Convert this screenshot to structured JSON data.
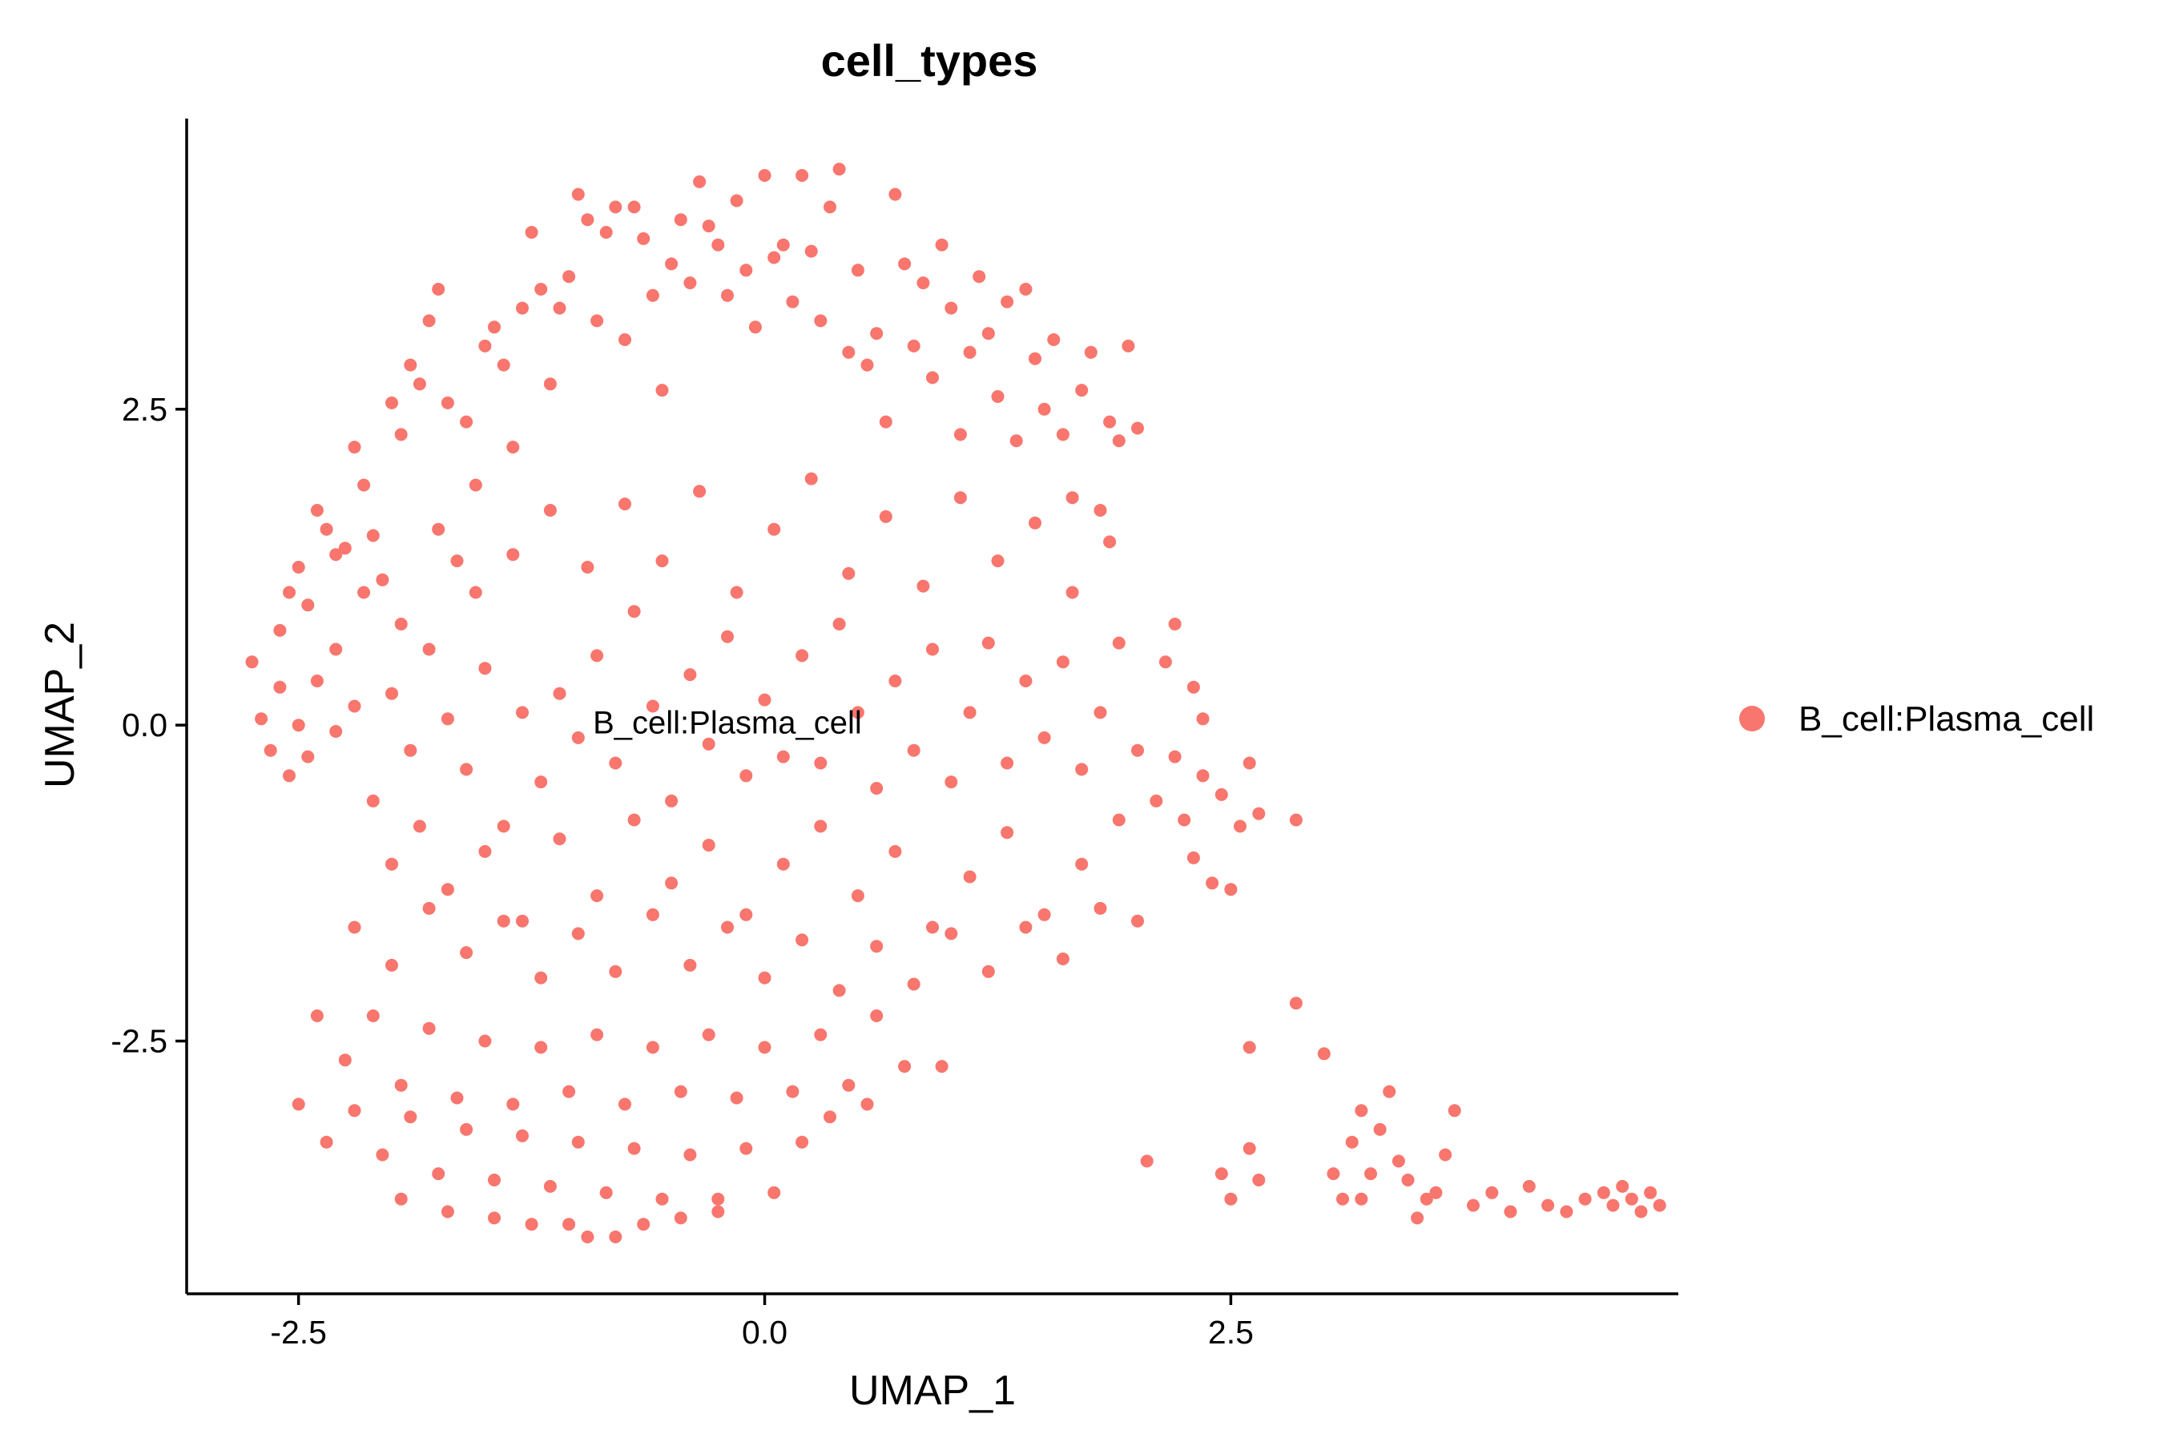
{
  "chart_data": {
    "type": "scatter",
    "title": "cell_types",
    "xlabel": "UMAP_1",
    "ylabel": "UMAP_2",
    "xlim": [
      -3.1,
      4.9
    ],
    "ylim": [
      -4.5,
      4.8
    ],
    "xticks": [
      -2.5,
      0.0,
      2.5
    ],
    "yticks": [
      -2.5,
      0.0,
      2.5
    ],
    "xtick_labels": [
      "-2.5",
      "0.0",
      "2.5"
    ],
    "ytick_labels": [
      "-2.5",
      "0.0",
      "2.5"
    ],
    "grid": false,
    "legend_position": "right",
    "cluster_label": {
      "text": "B_cell:Plasma_cell",
      "x": -0.2,
      "y": 0.0
    },
    "series": [
      {
        "name": "B_cell:Plasma_cell",
        "color": "#F8766D",
        "points": [
          [
            -2.75,
            0.5
          ],
          [
            -2.6,
            0.75
          ],
          [
            -2.55,
            1.05
          ],
          [
            -2.5,
            1.25
          ],
          [
            -2.45,
            0.95
          ],
          [
            -2.4,
            1.7
          ],
          [
            -2.35,
            1.55
          ],
          [
            -2.3,
            0.6
          ],
          [
            -2.25,
            1.4
          ],
          [
            -2.2,
            2.2
          ],
          [
            -2.15,
            1.9
          ],
          [
            -2.1,
            1.5
          ],
          [
            -2.05,
            1.15
          ],
          [
            -2.0,
            2.55
          ],
          [
            -1.95,
            2.3
          ],
          [
            -1.9,
            2.85
          ],
          [
            -1.85,
            2.7
          ],
          [
            -1.8,
            3.2
          ],
          [
            -1.75,
            3.45
          ],
          [
            -1.7,
            2.55
          ],
          [
            -1.65,
            1.3
          ],
          [
            -1.6,
            2.4
          ],
          [
            -1.55,
            1.9
          ],
          [
            -1.5,
            3.0
          ],
          [
            -1.45,
            3.15
          ],
          [
            -1.4,
            2.85
          ],
          [
            -1.35,
            2.2
          ],
          [
            -1.3,
            3.3
          ],
          [
            -1.25,
            3.9
          ],
          [
            -1.2,
            3.45
          ],
          [
            -1.15,
            2.7
          ],
          [
            -1.1,
            3.3
          ],
          [
            -1.05,
            3.55
          ],
          [
            -1.0,
            4.2
          ],
          [
            -0.95,
            4.0
          ],
          [
            -0.9,
            3.2
          ],
          [
            -0.85,
            3.9
          ],
          [
            -0.8,
            4.1
          ],
          [
            -0.75,
            3.05
          ],
          [
            -0.7,
            4.1
          ],
          [
            -0.65,
            3.85
          ],
          [
            -0.6,
            3.4
          ],
          [
            -0.55,
            2.65
          ],
          [
            -0.5,
            3.65
          ],
          [
            -0.45,
            4.0
          ],
          [
            -0.4,
            3.5
          ],
          [
            -0.35,
            4.3
          ],
          [
            -0.3,
            3.95
          ],
          [
            -0.25,
            3.8
          ],
          [
            -0.2,
            3.4
          ],
          [
            -0.15,
            4.15
          ],
          [
            -0.1,
            3.6
          ],
          [
            -0.05,
            3.15
          ],
          [
            0.0,
            4.35
          ],
          [
            0.05,
            3.7
          ],
          [
            0.1,
            3.8
          ],
          [
            0.15,
            3.35
          ],
          [
            0.2,
            4.35
          ],
          [
            0.25,
            3.75
          ],
          [
            0.3,
            3.2
          ],
          [
            0.35,
            4.1
          ],
          [
            0.4,
            4.4
          ],
          [
            0.45,
            2.95
          ],
          [
            0.5,
            3.6
          ],
          [
            0.55,
            2.85
          ],
          [
            0.6,
            3.1
          ],
          [
            0.65,
            2.4
          ],
          [
            0.7,
            4.2
          ],
          [
            0.75,
            3.65
          ],
          [
            0.8,
            3.0
          ],
          [
            0.85,
            3.5
          ],
          [
            0.9,
            2.75
          ],
          [
            0.95,
            3.8
          ],
          [
            1.0,
            3.3
          ],
          [
            1.05,
            2.3
          ],
          [
            1.1,
            2.95
          ],
          [
            1.15,
            3.55
          ],
          [
            1.2,
            3.1
          ],
          [
            1.25,
            2.6
          ],
          [
            1.3,
            3.35
          ],
          [
            1.35,
            2.25
          ],
          [
            1.4,
            3.45
          ],
          [
            1.45,
            2.9
          ],
          [
            1.5,
            2.5
          ],
          [
            1.55,
            3.05
          ],
          [
            1.6,
            2.3
          ],
          [
            1.65,
            1.8
          ],
          [
            1.7,
            2.65
          ],
          [
            1.75,
            2.95
          ],
          [
            1.8,
            1.7
          ],
          [
            1.85,
            2.4
          ],
          [
            1.9,
            2.25
          ],
          [
            1.95,
            3.0
          ],
          [
            2.0,
            2.35
          ],
          [
            -2.7,
            0.05
          ],
          [
            -2.65,
            -0.2
          ],
          [
            -2.6,
            0.3
          ],
          [
            -2.55,
            -0.4
          ],
          [
            -2.5,
            0.0
          ],
          [
            -2.45,
            -0.25
          ],
          [
            -2.4,
            0.35
          ],
          [
            -2.3,
            -0.05
          ],
          [
            -2.2,
            0.15
          ],
          [
            -2.1,
            -0.6
          ],
          [
            -2.0,
            0.25
          ],
          [
            -1.9,
            -0.2
          ],
          [
            -1.8,
            0.6
          ],
          [
            -1.7,
            0.05
          ],
          [
            -1.6,
            -0.35
          ],
          [
            -1.5,
            0.45
          ],
          [
            -1.4,
            -0.8
          ],
          [
            -1.3,
            0.1
          ],
          [
            -1.2,
            -0.45
          ],
          [
            -1.1,
            0.25
          ],
          [
            -1.0,
            -0.1
          ],
          [
            -0.9,
            0.55
          ],
          [
            -0.8,
            -0.3
          ],
          [
            -0.7,
            0.9
          ],
          [
            -0.6,
            0.15
          ],
          [
            -0.5,
            -0.6
          ],
          [
            -0.4,
            0.4
          ],
          [
            -0.3,
            -0.15
          ],
          [
            -0.2,
            0.7
          ],
          [
            -0.1,
            -0.4
          ],
          [
            0.0,
            0.2
          ],
          [
            0.1,
            -0.25
          ],
          [
            0.2,
            0.55
          ],
          [
            0.3,
            -0.3
          ],
          [
            0.4,
            0.8
          ],
          [
            0.5,
            0.1
          ],
          [
            0.6,
            -0.5
          ],
          [
            0.7,
            0.35
          ],
          [
            0.8,
            -0.2
          ],
          [
            0.9,
            0.6
          ],
          [
            1.0,
            -0.45
          ],
          [
            1.1,
            0.1
          ],
          [
            1.2,
            0.65
          ],
          [
            1.3,
            -0.3
          ],
          [
            1.4,
            0.35
          ],
          [
            1.5,
            -0.1
          ],
          [
            1.6,
            0.5
          ],
          [
            1.7,
            -0.35
          ],
          [
            1.8,
            0.1
          ],
          [
            1.9,
            0.65
          ],
          [
            2.0,
            -0.2
          ],
          [
            -2.3,
            1.35
          ],
          [
            -2.15,
            1.05
          ],
          [
            -1.95,
            0.8
          ],
          [
            -1.75,
            1.55
          ],
          [
            -1.55,
            1.05
          ],
          [
            -1.35,
            1.35
          ],
          [
            -1.15,
            1.7
          ],
          [
            -0.95,
            1.25
          ],
          [
            -0.75,
            1.75
          ],
          [
            -0.55,
            1.3
          ],
          [
            -0.35,
            1.85
          ],
          [
            -0.15,
            1.05
          ],
          [
            0.05,
            1.55
          ],
          [
            0.25,
            1.95
          ],
          [
            0.45,
            1.2
          ],
          [
            0.65,
            1.65
          ],
          [
            0.85,
            1.1
          ],
          [
            1.05,
            1.8
          ],
          [
            1.25,
            1.3
          ],
          [
            1.45,
            1.6
          ],
          [
            1.65,
            1.05
          ],
          [
            1.85,
            1.45
          ],
          [
            -2.0,
            -1.1
          ],
          [
            -1.85,
            -0.8
          ],
          [
            -1.7,
            -1.3
          ],
          [
            -1.5,
            -1.0
          ],
          [
            -1.3,
            -1.55
          ],
          [
            -1.1,
            -0.9
          ],
          [
            -0.9,
            -1.35
          ],
          [
            -0.7,
            -0.75
          ],
          [
            -0.5,
            -1.25
          ],
          [
            -0.3,
            -0.95
          ],
          [
            -0.1,
            -1.5
          ],
          [
            0.1,
            -1.1
          ],
          [
            0.3,
            -0.8
          ],
          [
            0.5,
            -1.35
          ],
          [
            0.7,
            -1.0
          ],
          [
            0.9,
            -1.6
          ],
          [
            1.1,
            -1.2
          ],
          [
            1.3,
            -0.85
          ],
          [
            1.5,
            -1.5
          ],
          [
            1.7,
            -1.1
          ],
          [
            1.9,
            -0.75
          ],
          [
            -2.2,
            -1.6
          ],
          [
            -2.0,
            -1.9
          ],
          [
            -1.8,
            -1.45
          ],
          [
            -1.6,
            -1.8
          ],
          [
            -1.4,
            -1.55
          ],
          [
            -1.2,
            -2.0
          ],
          [
            -1.0,
            -1.65
          ],
          [
            -0.8,
            -1.95
          ],
          [
            -0.6,
            -1.5
          ],
          [
            -0.4,
            -1.9
          ],
          [
            -0.2,
            -1.6
          ],
          [
            0.0,
            -2.0
          ],
          [
            0.2,
            -1.7
          ],
          [
            0.4,
            -2.1
          ],
          [
            0.6,
            -1.75
          ],
          [
            0.8,
            -2.05
          ],
          [
            1.0,
            -1.65
          ],
          [
            1.2,
            -1.95
          ],
          [
            1.4,
            -1.6
          ],
          [
            1.6,
            -1.85
          ],
          [
            1.8,
            -1.45
          ],
          [
            -2.4,
            -2.3
          ],
          [
            -2.25,
            -2.65
          ],
          [
            -2.1,
            -2.3
          ],
          [
            -1.95,
            -2.85
          ],
          [
            -1.8,
            -2.4
          ],
          [
            -1.65,
            -2.95
          ],
          [
            -1.5,
            -2.5
          ],
          [
            -1.35,
            -3.0
          ],
          [
            -1.2,
            -2.55
          ],
          [
            -1.05,
            -2.9
          ],
          [
            -0.9,
            -2.45
          ],
          [
            -0.75,
            -3.0
          ],
          [
            -0.6,
            -2.55
          ],
          [
            -0.45,
            -2.9
          ],
          [
            -0.3,
            -2.45
          ],
          [
            -0.15,
            -2.95
          ],
          [
            0.0,
            -2.55
          ],
          [
            0.15,
            -2.9
          ],
          [
            0.3,
            -2.45
          ],
          [
            0.45,
            -2.85
          ],
          [
            0.6,
            -2.3
          ],
          [
            0.75,
            -2.7
          ],
          [
            0.95,
            -2.7
          ],
          [
            -2.5,
            -3.0
          ],
          [
            -2.35,
            -3.3
          ],
          [
            -2.2,
            -3.05
          ],
          [
            -2.05,
            -3.4
          ],
          [
            -1.9,
            -3.1
          ],
          [
            -1.75,
            -3.55
          ],
          [
            -1.6,
            -3.2
          ],
          [
            -1.45,
            -3.6
          ],
          [
            -1.3,
            -3.25
          ],
          [
            -1.15,
            -3.65
          ],
          [
            -1.0,
            -3.3
          ],
          [
            -0.85,
            -3.7
          ],
          [
            -0.7,
            -3.35
          ],
          [
            -0.55,
            -3.75
          ],
          [
            -0.4,
            -3.4
          ],
          [
            -0.25,
            -3.75
          ],
          [
            -0.1,
            -3.35
          ],
          [
            0.05,
            -3.7
          ],
          [
            0.2,
            -3.3
          ],
          [
            0.35,
            -3.1
          ],
          [
            0.55,
            -3.0
          ],
          [
            -1.95,
            -3.75
          ],
          [
            -1.7,
            -3.85
          ],
          [
            -1.45,
            -3.9
          ],
          [
            -1.25,
            -3.95
          ],
          [
            -1.05,
            -3.95
          ],
          [
            -0.95,
            -4.05
          ],
          [
            -0.8,
            -4.05
          ],
          [
            -0.65,
            -3.95
          ],
          [
            -0.45,
            -3.9
          ],
          [
            -0.25,
            -3.85
          ],
          [
            2.1,
            -0.6
          ],
          [
            2.2,
            -0.25
          ],
          [
            2.25,
            -0.75
          ],
          [
            2.3,
            -1.05
          ],
          [
            2.35,
            -0.4
          ],
          [
            2.4,
            -1.25
          ],
          [
            2.45,
            -0.55
          ],
          [
            2.5,
            -1.3
          ],
          [
            2.55,
            -0.8
          ],
          [
            2.6,
            -0.3
          ],
          [
            2.65,
            -0.7
          ],
          [
            2.15,
            0.5
          ],
          [
            2.2,
            0.8
          ],
          [
            2.3,
            0.3
          ],
          [
            2.35,
            0.05
          ],
          [
            2.0,
            -1.55
          ],
          [
            2.85,
            -0.75
          ],
          [
            2.85,
            -2.2
          ],
          [
            2.6,
            -2.55
          ],
          [
            2.05,
            -3.45
          ],
          [
            2.45,
            -3.55
          ],
          [
            2.6,
            -3.35
          ],
          [
            2.65,
            -3.6
          ],
          [
            2.5,
            -3.75
          ],
          [
            3.0,
            -2.6
          ],
          [
            3.05,
            -3.55
          ],
          [
            3.1,
            -3.75
          ],
          [
            3.15,
            -3.3
          ],
          [
            3.2,
            -3.05
          ],
          [
            3.2,
            -3.75
          ],
          [
            3.25,
            -3.55
          ],
          [
            3.3,
            -3.2
          ],
          [
            3.35,
            -2.9
          ],
          [
            3.4,
            -3.45
          ],
          [
            3.45,
            -3.6
          ],
          [
            3.5,
            -3.9
          ],
          [
            3.55,
            -3.75
          ],
          [
            3.6,
            -3.7
          ],
          [
            3.65,
            -3.4
          ],
          [
            3.7,
            -3.05
          ],
          [
            3.8,
            -3.8
          ],
          [
            3.9,
            -3.7
          ],
          [
            4.0,
            -3.85
          ],
          [
            4.1,
            -3.65
          ],
          [
            4.2,
            -3.8
          ],
          [
            4.3,
            -3.85
          ],
          [
            4.4,
            -3.75
          ],
          [
            4.5,
            -3.7
          ],
          [
            4.55,
            -3.8
          ],
          [
            4.6,
            -3.65
          ],
          [
            4.65,
            -3.75
          ],
          [
            4.7,
            -3.85
          ],
          [
            4.75,
            -3.7
          ],
          [
            4.8,
            -3.8
          ]
        ]
      }
    ]
  }
}
